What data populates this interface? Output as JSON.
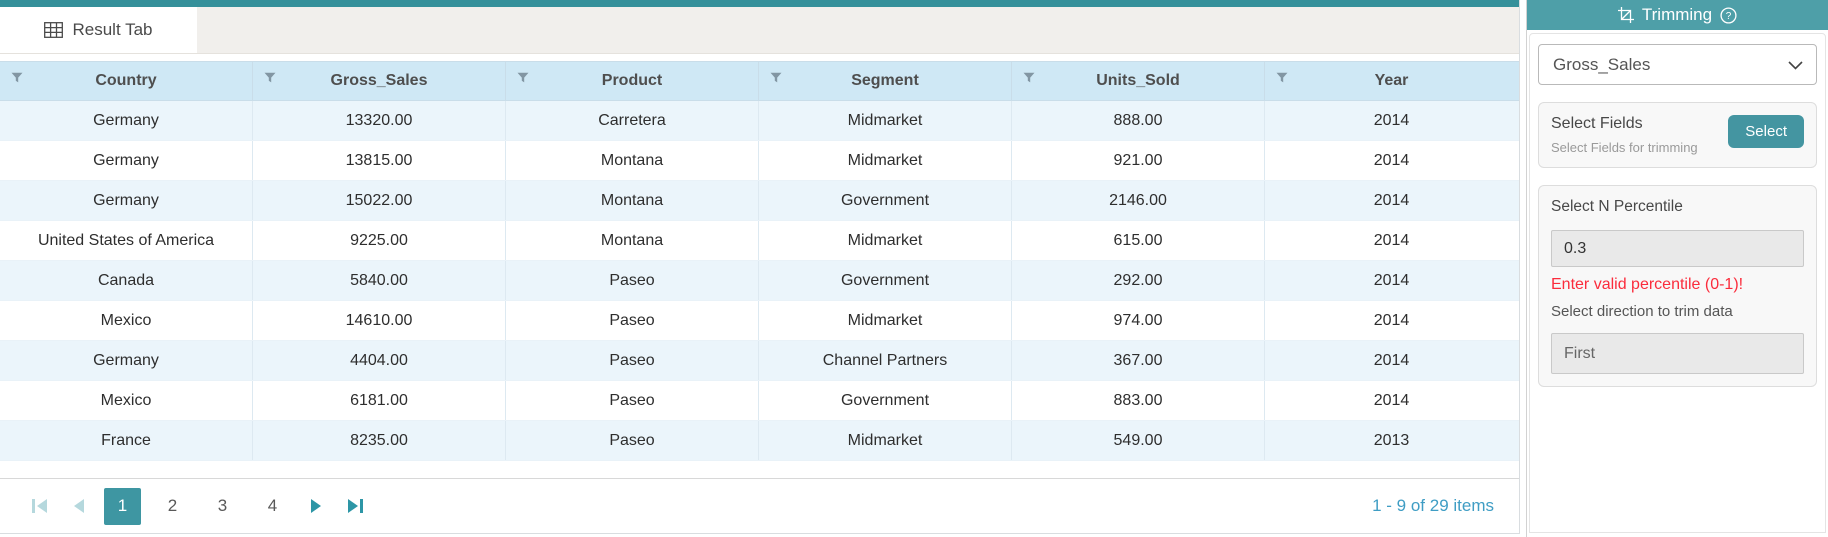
{
  "tab": {
    "label": "Result Tab"
  },
  "table": {
    "columns": [
      "Country",
      "Gross_Sales",
      "Product",
      "Segment",
      "Units_Sold",
      "Year"
    ],
    "rows": [
      [
        "Germany",
        "13320.00",
        "Carretera",
        "Midmarket",
        "888.00",
        "2014"
      ],
      [
        "Germany",
        "13815.00",
        "Montana",
        "Midmarket",
        "921.00",
        "2014"
      ],
      [
        "Germany",
        "15022.00",
        "Montana",
        "Government",
        "2146.00",
        "2014"
      ],
      [
        "United States of America",
        "9225.00",
        "Montana",
        "Midmarket",
        "615.00",
        "2014"
      ],
      [
        "Canada",
        "5840.00",
        "Paseo",
        "Government",
        "292.00",
        "2014"
      ],
      [
        "Mexico",
        "14610.00",
        "Paseo",
        "Midmarket",
        "974.00",
        "2014"
      ],
      [
        "Germany",
        "4404.00",
        "Paseo",
        "Channel Partners",
        "367.00",
        "2014"
      ],
      [
        "Mexico",
        "6181.00",
        "Paseo",
        "Government",
        "883.00",
        "2014"
      ],
      [
        "France",
        "8235.00",
        "Paseo",
        "Midmarket",
        "549.00",
        "2013"
      ]
    ]
  },
  "pager": {
    "pages": [
      "1",
      "2",
      "3",
      "4"
    ],
    "active_page": "1",
    "info": "1 - 9 of 29 items"
  },
  "sidebar": {
    "title": "Trimming",
    "field_dropdown_value": "Gross_Sales",
    "select_fields": {
      "label": "Select Fields",
      "hint": "Select Fields for trimming",
      "button": "Select"
    },
    "percentile": {
      "label": "Select N Percentile",
      "value": "0.3",
      "error": "Enter valid percentile (0-1)!",
      "direction_label": "Select direction to trim data",
      "direction_value": "First"
    }
  },
  "colors": {
    "accent_teal": "#3e96a2",
    "sidebar_header_teal": "#4e9fa8",
    "grid_header_blue": "#cfe8f5",
    "row_alt_blue": "#ebf5fb",
    "error_red": "#fb2c3c",
    "pager_info_teal": "#3f9dc4"
  }
}
